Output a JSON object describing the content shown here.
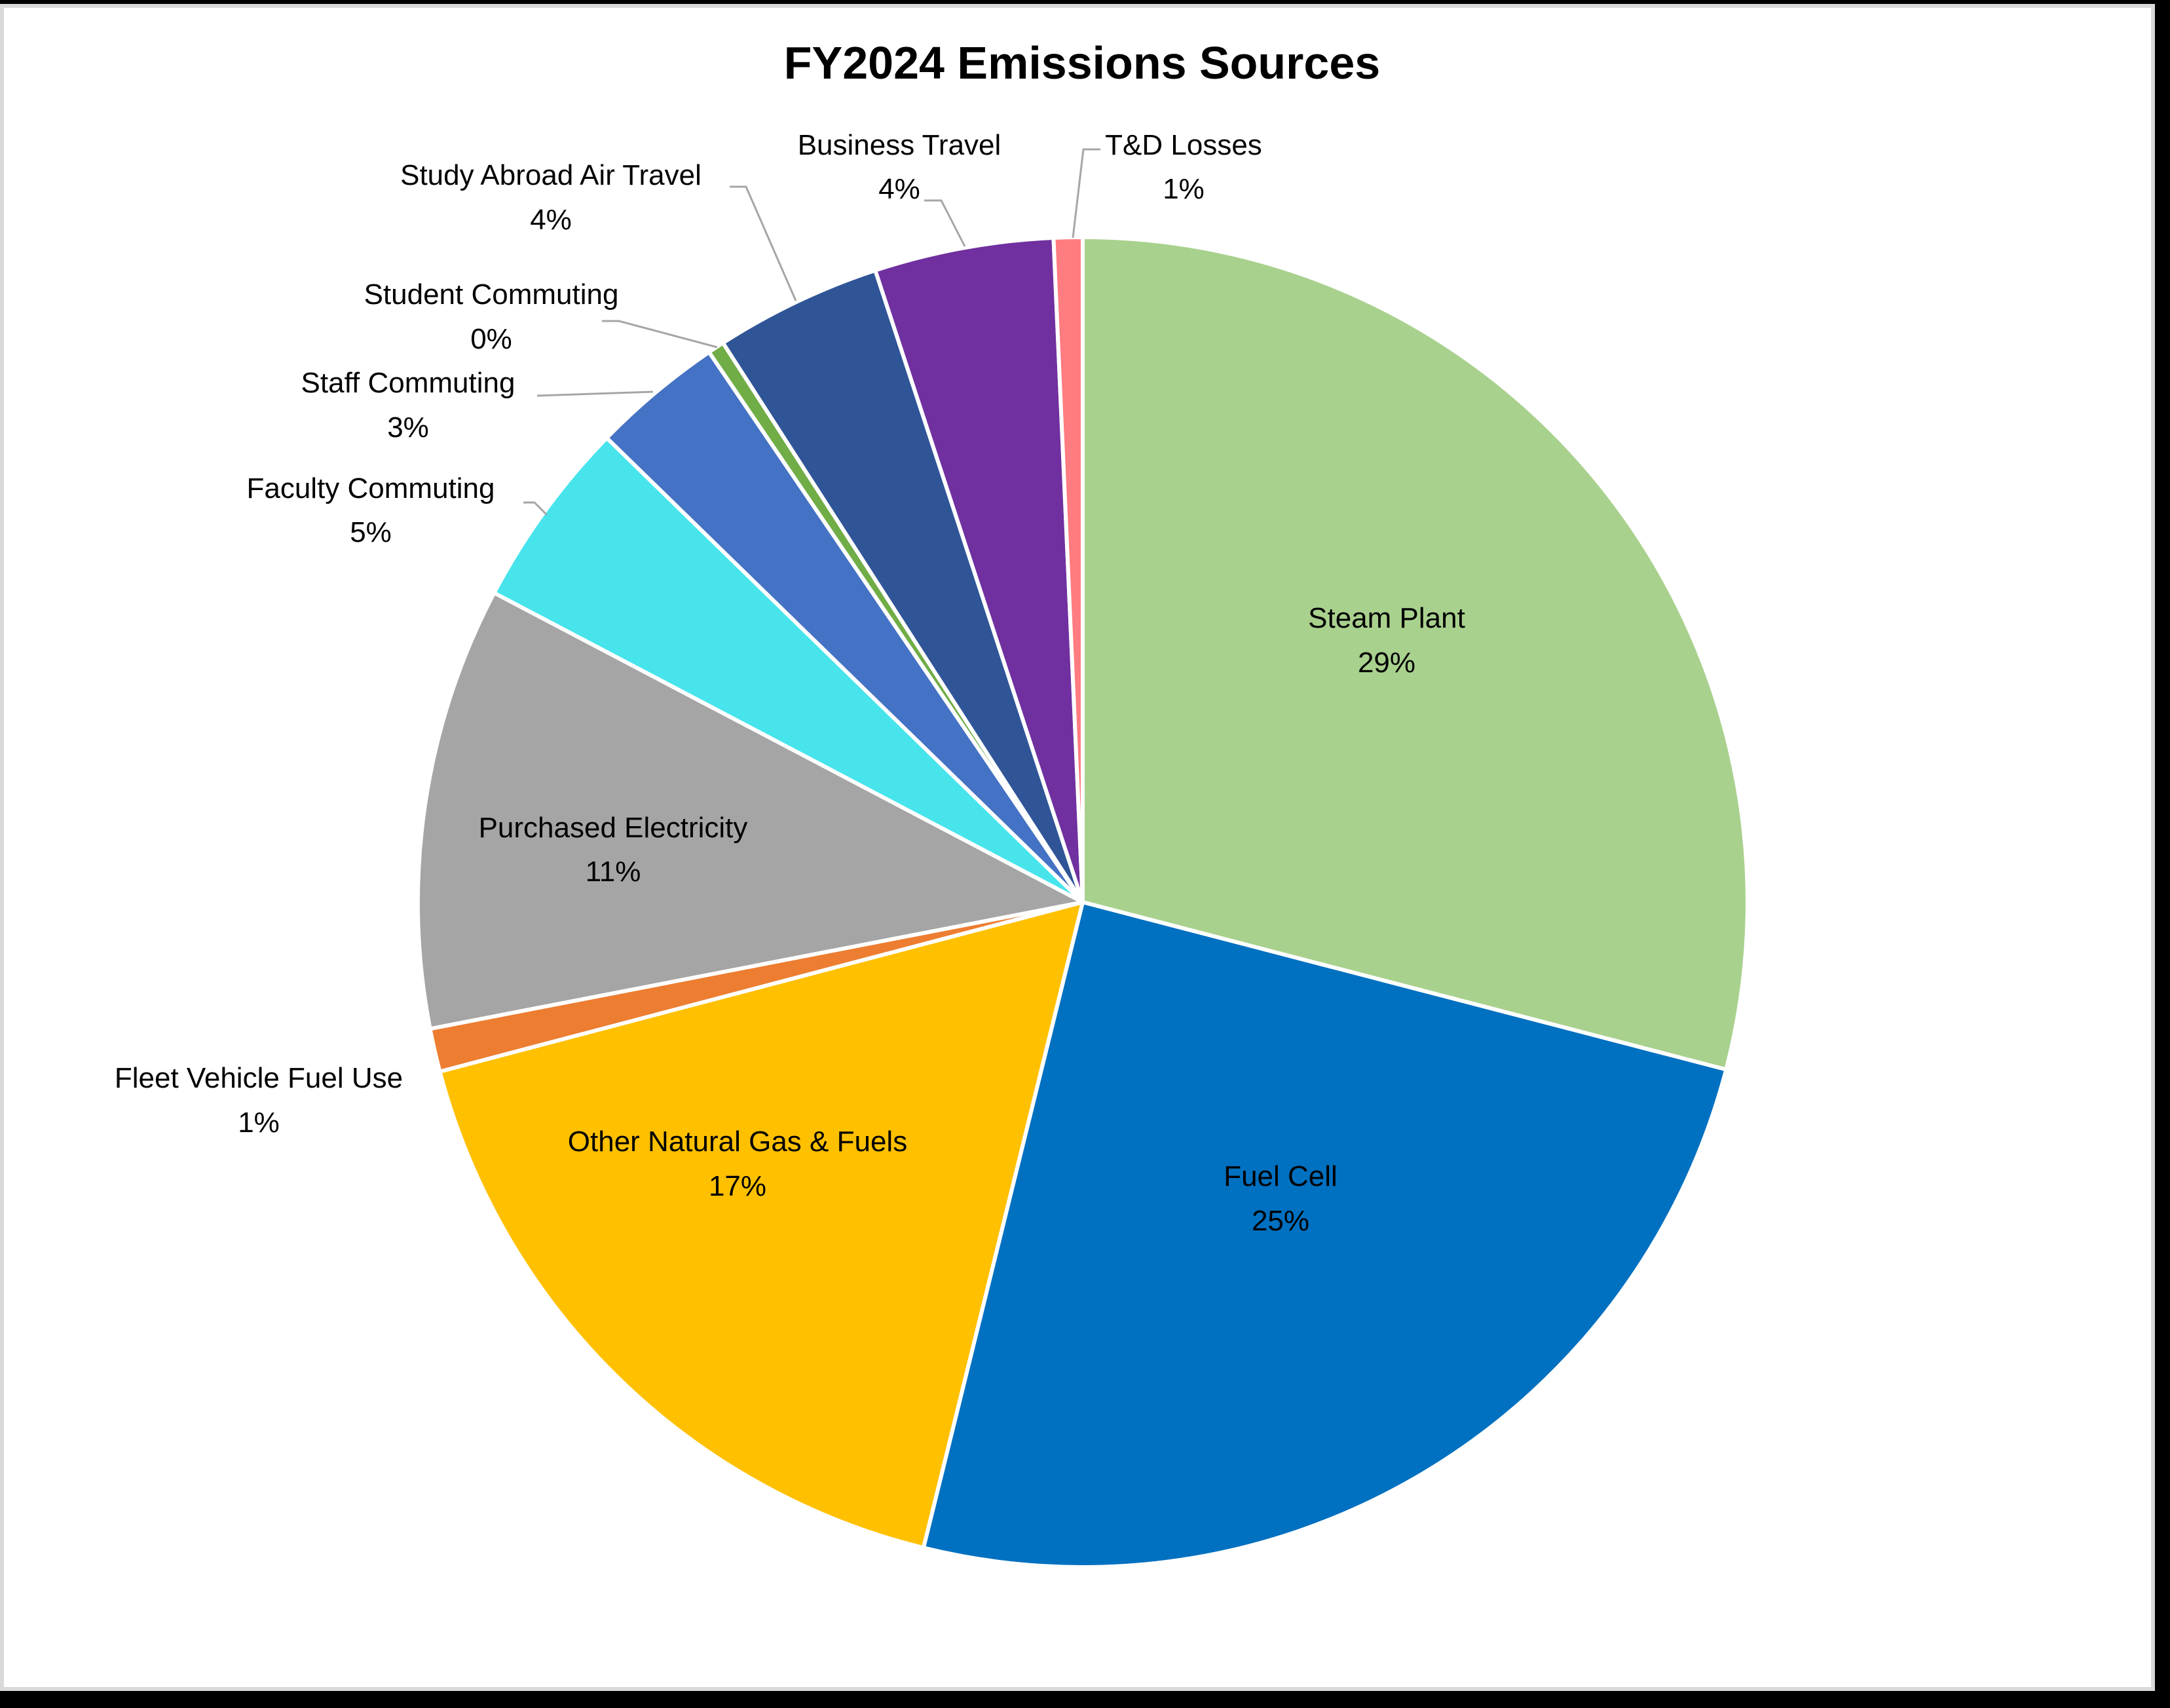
{
  "chart_data": {
    "type": "pie",
    "title": "FY2024 Emissions Sources",
    "start_angle_deg": 0,
    "direction": "clockwise",
    "categories": [
      "Steam Plant",
      "Fuel Cell",
      "Other Natural Gas & Fuels",
      "Fleet Vehicle Fuel Use",
      "Purchased Electricity",
      "Faculty Commuting",
      "Staff Commuting",
      "Student Commuting",
      "Study Abroad Air Travel",
      "Business Travel",
      "T&D Losses"
    ],
    "values": [
      29.05,
      24.8,
      17.05,
      1.05,
      10.75,
      4.6,
      3.2,
      0.4,
      4.05,
      4.35,
      0.7
    ],
    "labels": [
      "29%",
      "25%",
      "17%",
      "1%",
      "11%",
      "5%",
      "3%",
      "0%",
      "4%",
      "4%",
      "1%"
    ],
    "colors": [
      "#a9d18e",
      "#0070c0",
      "#ffc000",
      "#ed7d31",
      "#a5a5a5",
      "#47e4ec",
      "#4472c4",
      "#70ad47",
      "#2f5597",
      "#7030a0",
      "#ff7c80"
    ],
    "legend": "none (data labels with category name and percentage)",
    "xlabel": "",
    "ylabel": ""
  },
  "title": "FY2024 Emissions Sources",
  "slices": [
    {
      "name": "Steam Plant",
      "pct": "29%",
      "color": "#a9d18e"
    },
    {
      "name": "Fuel Cell",
      "pct": "25%",
      "color": "#0070c0"
    },
    {
      "name": "Other Natural Gas & Fuels",
      "pct": "17%",
      "color": "#ffc000"
    },
    {
      "name": "Fleet Vehicle Fuel Use",
      "pct": "1%",
      "color": "#ed7d31"
    },
    {
      "name": "Purchased Electricity",
      "pct": "11%",
      "color": "#a5a5a5"
    },
    {
      "name": "Faculty Commuting",
      "pct": "5%",
      "color": "#47e4ec"
    },
    {
      "name": "Staff Commuting",
      "pct": "3%",
      "color": "#4472c4"
    },
    {
      "name": "Student Commuting",
      "pct": "0%",
      "color": "#70ad47"
    },
    {
      "name": "Study Abroad Air Travel",
      "pct": "4%",
      "color": "#2f5597"
    },
    {
      "name": "Business Travel",
      "pct": "4%",
      "color": "#7030a0"
    },
    {
      "name": "T&D Losses",
      "pct": "1%",
      "color": "#ff7c80"
    }
  ]
}
